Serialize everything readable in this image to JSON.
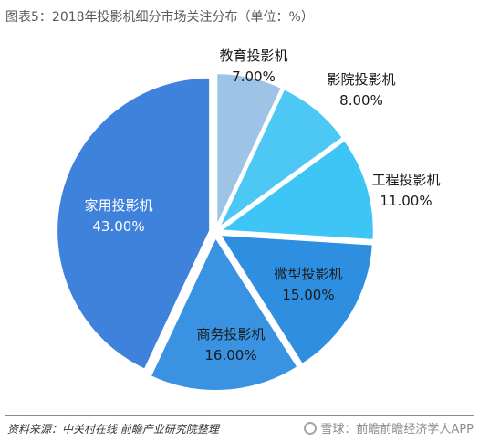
{
  "title": "图表5：2018年投影机细分市场关注分布（单位：%）",
  "source": "资料来源：中关村在线 前瞻产业研究院整理",
  "watermark": "雪球：前瞻前瞻经济学人APP",
  "chart_data": {
    "type": "pie",
    "title": "图表5：2018年投影机细分市场关注分布（单位：%）",
    "slices": [
      {
        "name": "教育投影机",
        "value": 7.0,
        "label": "7.00%",
        "color": "#9dc3e6"
      },
      {
        "name": "影院投影机",
        "value": 8.0,
        "label": "8.00%",
        "color": "#4dc8f5"
      },
      {
        "name": "工程投影机",
        "value": 11.0,
        "label": "11.00%",
        "color": "#3cc5f5"
      },
      {
        "name": "微型投影机",
        "value": 15.0,
        "label": "15.00%",
        "color": "#2e8fe0"
      },
      {
        "name": "商务投影机",
        "value": 16.0,
        "label": "16.00%",
        "color": "#3a92e3"
      },
      {
        "name": "家用投影机",
        "value": 43.0,
        "label": "43.00%",
        "color": "#3f82dc"
      }
    ]
  }
}
